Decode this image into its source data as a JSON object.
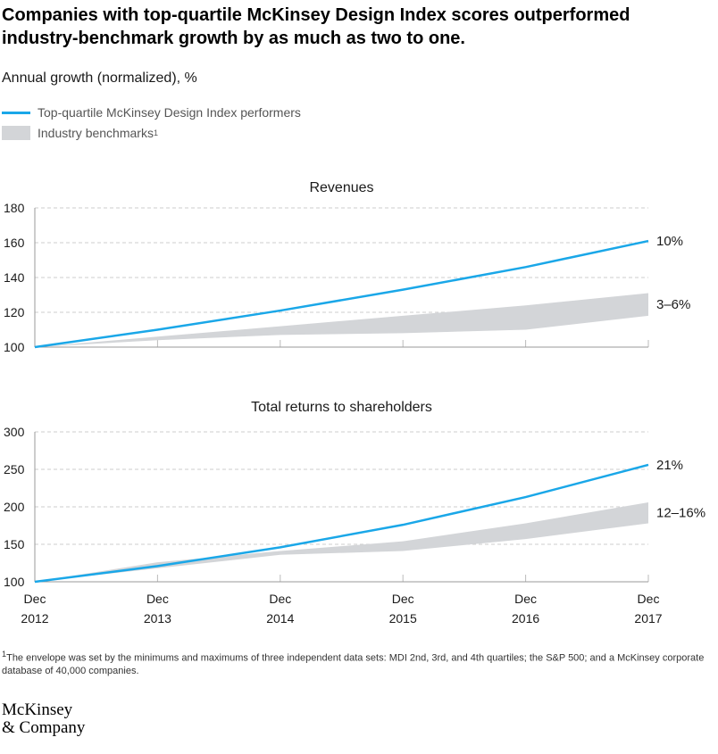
{
  "title": "Companies with top-quartile McKinsey Design Index scores outperformed industry-benchmark growth by as much as two to one.",
  "subtitle": "Annual growth (normalized), %",
  "legend": [
    {
      "label": "Top-quartile McKinsey Design Index performers",
      "type": "line",
      "color": "#1aa7e8"
    },
    {
      "label": "Industry benchmarks",
      "footnote_mark": "1",
      "type": "band",
      "color": "#d3d5d8"
    }
  ],
  "chart_data": [
    {
      "type": "line",
      "title": "Revenues",
      "x": [
        "Dec 2012",
        "Dec 2013",
        "Dec 2014",
        "Dec 2015",
        "Dec 2016",
        "Dec 2017"
      ],
      "yticks": [
        100,
        120,
        140,
        160,
        180
      ],
      "ylim": [
        100,
        180
      ],
      "grid": true,
      "series": [
        {
          "name": "Top-quartile McKinsey Design Index performers",
          "type": "line",
          "values": [
            100,
            110,
            121,
            133,
            146,
            161
          ],
          "end_label": "10%"
        },
        {
          "name": "Industry benchmarks",
          "type": "band",
          "low": [
            100,
            104,
            107,
            108,
            110,
            118
          ],
          "high": [
            100,
            106,
            112,
            118,
            124,
            131
          ],
          "end_label": "3–6%"
        }
      ]
    },
    {
      "type": "line",
      "title": "Total returns to shareholders",
      "x": [
        "Dec 2012",
        "Dec 2013",
        "Dec 2014",
        "Dec 2015",
        "Dec 2016",
        "Dec 2017"
      ],
      "yticks": [
        100,
        150,
        200,
        250,
        300
      ],
      "ylim": [
        100,
        300
      ],
      "grid": true,
      "series": [
        {
          "name": "Top-quartile McKinsey Design Index performers",
          "type": "line",
          "values": [
            100,
            121,
            146,
            176,
            213,
            256
          ],
          "end_label": "21%"
        },
        {
          "name": "Industry benchmarks",
          "type": "band",
          "low": [
            100,
            118,
            136,
            141,
            157,
            178
          ],
          "high": [
            100,
            126,
            141,
            154,
            178,
            206
          ],
          "end_label": "12–16%"
        }
      ]
    }
  ],
  "x_tick_labels": [
    {
      "month": "Dec",
      "year": "2012"
    },
    {
      "month": "Dec",
      "year": "2013"
    },
    {
      "month": "Dec",
      "year": "2014"
    },
    {
      "month": "Dec",
      "year": "2015"
    },
    {
      "month": "Dec",
      "year": "2016"
    },
    {
      "month": "Dec",
      "year": "2017"
    }
  ],
  "footnote": {
    "mark": "1",
    "text": "The envelope was set by the minimums and maximums of three independent data sets: MDI 2nd, 3rd, and 4th quartiles; the S&P 500; and a McKinsey corporate database of 40,000 companies."
  },
  "logo": {
    "line1": "McKinsey",
    "line2": "& Company"
  }
}
